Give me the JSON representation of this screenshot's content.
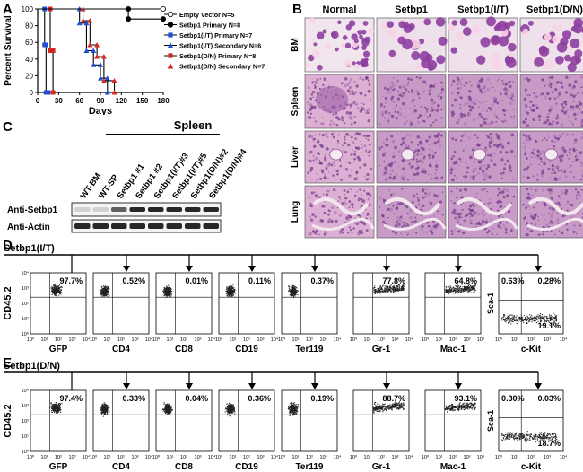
{
  "panels": {
    "a": "A",
    "b": "B",
    "c": "C",
    "d": "D",
    "e": "E"
  },
  "chart_data": {
    "type": "line",
    "title": "",
    "xlabel": "Days",
    "ylabel": "Percent Survival",
    "xlim": [
      0,
      180
    ],
    "ylim": [
      0,
      100
    ],
    "xticks": [
      "0",
      "30",
      "60",
      "90",
      "120",
      "150",
      "180"
    ],
    "yticks": [
      "0",
      "20",
      "40",
      "60",
      "80",
      "100"
    ],
    "series": [
      {
        "name": "Empty Vector N=5",
        "color": "#ffffff",
        "marker": "circle-open",
        "x": [
          0,
          180
        ],
        "y": [
          100,
          100
        ]
      },
      {
        "name": "Setbp1 Primary N=8",
        "color": "#000000",
        "marker": "circle",
        "x": [
          0,
          130,
          130,
          180
        ],
        "y": [
          100,
          100,
          88,
          88
        ]
      },
      {
        "name": "Setbp1(I/T) Primary N=7",
        "color": "#1f4fd6",
        "marker": "square",
        "x": [
          0,
          10,
          10,
          12,
          12,
          15
        ],
        "y": [
          100,
          100,
          57,
          57,
          0,
          0
        ]
      },
      {
        "name": "Setbp1(I/T) Secondary N=6",
        "color": "#1f4fd6",
        "marker": "triangle",
        "x": [
          0,
          60,
          60,
          70,
          70,
          80,
          80,
          90,
          90,
          100,
          100
        ],
        "y": [
          100,
          100,
          83,
          83,
          50,
          50,
          33,
          33,
          17,
          17,
          0
        ]
      },
      {
        "name": "Setbp1(D/N) Primary N=8",
        "color": "#d6251f",
        "marker": "square",
        "x": [
          0,
          18,
          18,
          22,
          22
        ],
        "y": [
          100,
          100,
          50,
          50,
          0
        ]
      },
      {
        "name": "Setbp1(D/N) Secondary N=7",
        "color": "#d6251f",
        "marker": "triangle",
        "x": [
          0,
          65,
          65,
          75,
          75,
          85,
          85,
          95,
          95,
          110,
          110
        ],
        "y": [
          100,
          100,
          86,
          86,
          57,
          57,
          43,
          43,
          14,
          14,
          0
        ]
      }
    ]
  },
  "histology": {
    "columns": [
      "Normal",
      "Setbp1",
      "Setbp1(I/T)",
      "Setbp1(D/N)"
    ],
    "rows": [
      "BM",
      "Spleen",
      "Liver",
      "Lung"
    ]
  },
  "western": {
    "header": "Spleen",
    "lanes": [
      "WT-BM",
      "WT-SP",
      "Setbp1 #1",
      "Setbp1 #2",
      "Setbp1(I/T)#3",
      "Setbp1(I/T)#5",
      "Setbp1(D/N)#2",
      "Setbp1(D/N)#4"
    ],
    "rows": [
      "Anti-Setbp1",
      "Anti-Actin"
    ]
  },
  "flow_d": {
    "title": "Setbp1(I/T)",
    "ylabel": "CD45.2",
    "plots": [
      {
        "x": "GFP",
        "pct": "97.7%"
      },
      {
        "x": "CD4",
        "pct": "0.52%"
      },
      {
        "x": "CD8",
        "pct": "0.01%"
      },
      {
        "x": "CD19",
        "pct": "0.11%"
      },
      {
        "x": "Ter119",
        "pct": "0.37%"
      },
      {
        "x": "Gr-1",
        "pct": "77.8%"
      },
      {
        "x": "Mac-1",
        "pct": "64.8%"
      }
    ],
    "quad": {
      "x": "c-Kit",
      "y": "Sca-1",
      "tl": "0.63%",
      "tr": "0.28%",
      "br": "19.1%"
    }
  },
  "flow_e": {
    "title": "Setbp1(D/N)",
    "ylabel": "CD45.2",
    "plots": [
      {
        "x": "GFP",
        "pct": "97.4%"
      },
      {
        "x": "CD4",
        "pct": "0.33%"
      },
      {
        "x": "CD8",
        "pct": "0.04%"
      },
      {
        "x": "CD19",
        "pct": "0.36%"
      },
      {
        "x": "Ter119",
        "pct": "0.19%"
      },
      {
        "x": "Gr-1",
        "pct": "88.7%"
      },
      {
        "x": "Mac-1",
        "pct": "93.1%"
      }
    ],
    "quad": {
      "x": "c-Kit",
      "y": "Sca-1",
      "tl": "0.30%",
      "tr": "0.03%",
      "br": "18.7%"
    }
  },
  "axis_ticks": [
    "10⁰",
    "10¹",
    "10²",
    "10³",
    "10⁴"
  ],
  "colors": {
    "he_bg": "#e6c6de",
    "he_dark": "#7a3f8f",
    "he_mid": "#b47ab6",
    "cell": "#8e3fa0"
  }
}
